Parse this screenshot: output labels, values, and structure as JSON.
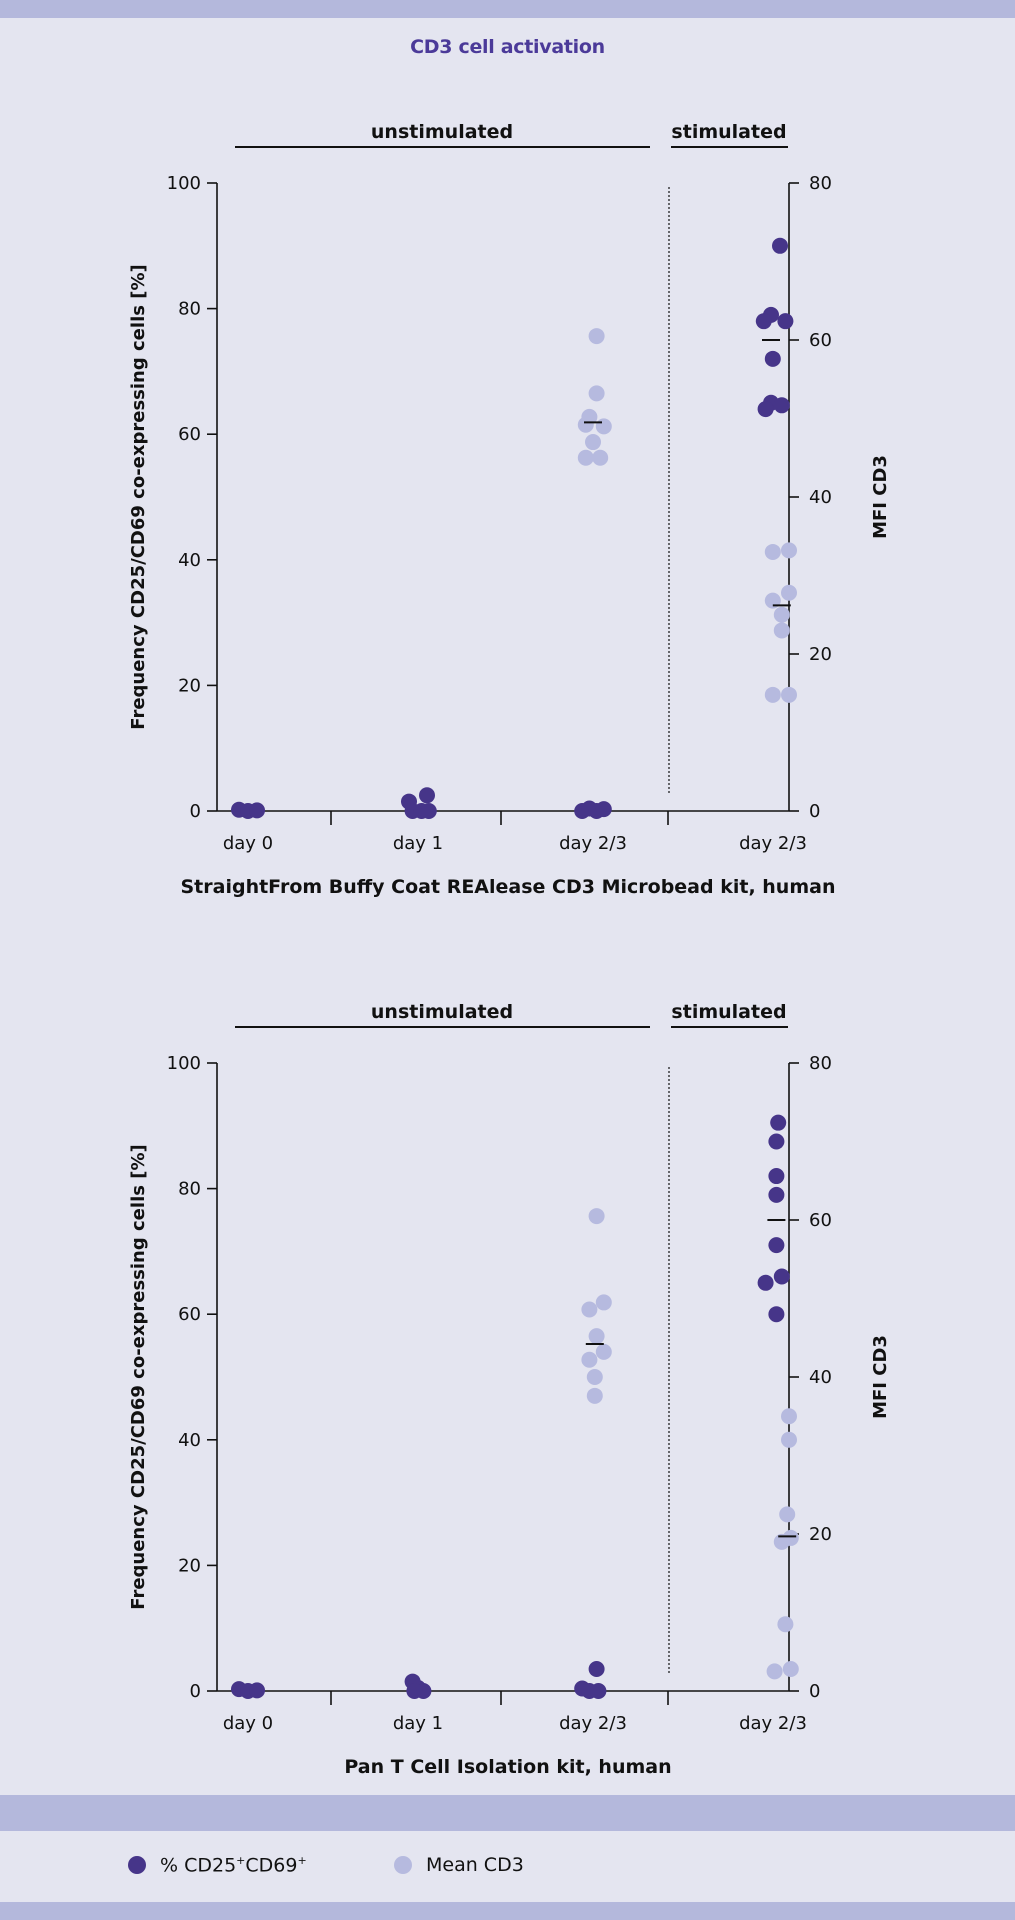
{
  "colors": {
    "band": "#b4b8dc",
    "title": "#4b3a99",
    "dark": "#463589",
    "light": "#b6badf",
    "background": "#e4e5f0"
  },
  "page": {
    "title": "CD3 cell activation"
  },
  "legend": {
    "dark_label_prefix": "% CD25",
    "dark_label_sup1": "+",
    "dark_label_mid": "CD69",
    "dark_label_sup2": "+",
    "light_label": "Mean CD3"
  },
  "chart_data": [
    {
      "type": "scatter",
      "title": "",
      "xlabel": "StraightFrom Buffy Coat REAlease CD3 Microbead kit, human",
      "ylabel": "Frequency CD25/CD69 co-expressing cells [%]",
      "y2label": "MFI CD3",
      "ylim": [
        0,
        100
      ],
      "y2lim": [
        0,
        80
      ],
      "yticks": [
        0,
        20,
        40,
        60,
        80,
        100
      ],
      "y2ticks": [
        0,
        20,
        40,
        60,
        80
      ],
      "group_labels": {
        "unstimulated": "unstimulated",
        "stimulated": "stimulated"
      },
      "categories": [
        "day 0",
        "day 1",
        "day 2/3",
        "day 2/3"
      ],
      "series": [
        {
          "name": "% CD25+CD69+",
          "axis": "left",
          "points": [
            {
              "cat": 0,
              "dx": -0.5,
              "y": 0.2
            },
            {
              "cat": 0,
              "dx": 0.0,
              "y": 0.0
            },
            {
              "cat": 0,
              "dx": 0.5,
              "y": 0.1
            },
            {
              "cat": 1,
              "dx": -0.5,
              "y": 1.5
            },
            {
              "cat": 1,
              "dx": -0.3,
              "y": 0.0
            },
            {
              "cat": 1,
              "dx": 0.2,
              "y": 0.0
            },
            {
              "cat": 1,
              "dx": 0.5,
              "y": 2.5
            },
            {
              "cat": 1,
              "dx": 0.6,
              "y": 0.0
            },
            {
              "cat": 2,
              "dx": -0.6,
              "y": 0.0
            },
            {
              "cat": 2,
              "dx": -0.2,
              "y": 0.4
            },
            {
              "cat": 2,
              "dx": 0.2,
              "y": 0.0
            },
            {
              "cat": 2,
              "dx": 0.6,
              "y": 0.3
            },
            {
              "cat": 3,
              "dx": 0.5,
              "y": 90.0
            },
            {
              "cat": 3,
              "dx": 0.0,
              "y": 79.0
            },
            {
              "cat": 3,
              "dx": -0.4,
              "y": 78.0
            },
            {
              "cat": 3,
              "dx": 0.8,
              "y": 78.0
            },
            {
              "cat": 3,
              "dx": 0.1,
              "y": 72.0
            },
            {
              "cat": 3,
              "dx": 0.0,
              "y": 65.0
            },
            {
              "cat": 3,
              "dx": -0.3,
              "y": 64.0
            },
            {
              "cat": 3,
              "dx": 0.6,
              "y": 64.6
            }
          ]
        },
        {
          "name": "Mean CD3",
          "axis": "right",
          "points": [
            {
              "cat": 2,
              "dx": 0.2,
              "y": 60.5
            },
            {
              "cat": 2,
              "dx": 0.2,
              "y": 53.2
            },
            {
              "cat": 2,
              "dx": -0.2,
              "y": 50.2
            },
            {
              "cat": 2,
              "dx": -0.4,
              "y": 49.2
            },
            {
              "cat": 2,
              "dx": 0.6,
              "y": 49.0
            },
            {
              "cat": 2,
              "dx": 0.0,
              "y": 47.0
            },
            {
              "cat": 2,
              "dx": -0.4,
              "y": 45.0
            },
            {
              "cat": 2,
              "dx": 0.4,
              "y": 45.0
            },
            {
              "cat": 3,
              "dx": 0.1,
              "y": 33.0
            },
            {
              "cat": 3,
              "dx": 1.0,
              "y": 33.2
            },
            {
              "cat": 3,
              "dx": 0.1,
              "y": 26.8
            },
            {
              "cat": 3,
              "dx": 1.0,
              "y": 27.8
            },
            {
              "cat": 3,
              "dx": 0.6,
              "y": 25.0
            },
            {
              "cat": 3,
              "dx": 0.6,
              "y": 23.0
            },
            {
              "cat": 3,
              "dx": 0.1,
              "y": 14.8
            },
            {
              "cat": 3,
              "dx": 1.0,
              "y": 14.8
            }
          ]
        }
      ],
      "means": [
        {
          "series": "% CD25+CD69+",
          "cat": 3,
          "dx": 0.0,
          "y": 75.0
        },
        {
          "series": "Mean CD3",
          "cat": 2,
          "dx": 0.0,
          "y": 49.5
        },
        {
          "series": "Mean CD3",
          "cat": 3,
          "dx": 0.6,
          "y": 26.2
        }
      ]
    },
    {
      "type": "scatter",
      "title": "",
      "xlabel": "Pan T Cell Isolation kit, human",
      "ylabel": "Frequency CD25/CD69 co-expressing cells [%]",
      "y2label": "MFI CD3",
      "ylim": [
        0,
        100
      ],
      "y2lim": [
        0,
        80
      ],
      "yticks": [
        0,
        20,
        40,
        60,
        80,
        100
      ],
      "y2ticks": [
        0,
        20,
        40,
        60,
        80
      ],
      "group_labels": {
        "unstimulated": "unstimulated",
        "stimulated": "stimulated"
      },
      "categories": [
        "day 0",
        "day 1",
        "day 2/3",
        "day 2/3"
      ],
      "series": [
        {
          "name": "% CD25+CD69+",
          "axis": "left",
          "points": [
            {
              "cat": 0,
              "dx": -0.5,
              "y": 0.3
            },
            {
              "cat": 0,
              "dx": 0.0,
              "y": 0.0
            },
            {
              "cat": 0,
              "dx": 0.5,
              "y": 0.1
            },
            {
              "cat": 1,
              "dx": -0.3,
              "y": 1.5
            },
            {
              "cat": 1,
              "dx": 0.0,
              "y": 0.5
            },
            {
              "cat": 1,
              "dx": 0.3,
              "y": 0.0
            },
            {
              "cat": 1,
              "dx": -0.2,
              "y": 0.0
            },
            {
              "cat": 2,
              "dx": -0.6,
              "y": 0.4
            },
            {
              "cat": 2,
              "dx": -0.2,
              "y": 0.0
            },
            {
              "cat": 2,
              "dx": 0.2,
              "y": 3.5
            },
            {
              "cat": 2,
              "dx": 0.3,
              "y": 0.0
            },
            {
              "cat": 3,
              "dx": 0.4,
              "y": 90.5
            },
            {
              "cat": 3,
              "dx": 0.3,
              "y": 87.5
            },
            {
              "cat": 3,
              "dx": 0.3,
              "y": 82.0
            },
            {
              "cat": 3,
              "dx": 0.3,
              "y": 79.0
            },
            {
              "cat": 3,
              "dx": 0.3,
              "y": 71.0
            },
            {
              "cat": 3,
              "dx": 0.6,
              "y": 66.0
            },
            {
              "cat": 3,
              "dx": -0.3,
              "y": 65.0
            },
            {
              "cat": 3,
              "dx": 0.3,
              "y": 60.0
            }
          ]
        },
        {
          "name": "Mean CD3",
          "axis": "right",
          "points": [
            {
              "cat": 2,
              "dx": 0.2,
              "y": 60.5
            },
            {
              "cat": 2,
              "dx": 0.6,
              "y": 49.5
            },
            {
              "cat": 2,
              "dx": -0.2,
              "y": 48.6
            },
            {
              "cat": 2,
              "dx": 0.2,
              "y": 45.2
            },
            {
              "cat": 2,
              "dx": 0.6,
              "y": 43.2
            },
            {
              "cat": 2,
              "dx": -0.2,
              "y": 42.2
            },
            {
              "cat": 2,
              "dx": 0.1,
              "y": 40.0
            },
            {
              "cat": 2,
              "dx": 0.1,
              "y": 37.6
            },
            {
              "cat": 3,
              "dx": 1.0,
              "y": 35.0
            },
            {
              "cat": 3,
              "dx": 1.0,
              "y": 32.0
            },
            {
              "cat": 3,
              "dx": 0.9,
              "y": 22.5
            },
            {
              "cat": 3,
              "dx": 1.1,
              "y": 19.5
            },
            {
              "cat": 3,
              "dx": 0.6,
              "y": 19.0
            },
            {
              "cat": 3,
              "dx": 0.8,
              "y": 8.5
            },
            {
              "cat": 3,
              "dx": 0.2,
              "y": 2.5
            },
            {
              "cat": 3,
              "dx": 1.1,
              "y": 2.8
            }
          ]
        }
      ],
      "means": [
        {
          "series": "% CD25+CD69+",
          "cat": 3,
          "dx": 0.3,
          "y": 75.0
        },
        {
          "series": "Mean CD3",
          "cat": 2,
          "dx": 0.1,
          "y": 44.2
        },
        {
          "series": "Mean CD3",
          "cat": 3,
          "dx": 0.9,
          "y": 19.7
        }
      ]
    }
  ]
}
